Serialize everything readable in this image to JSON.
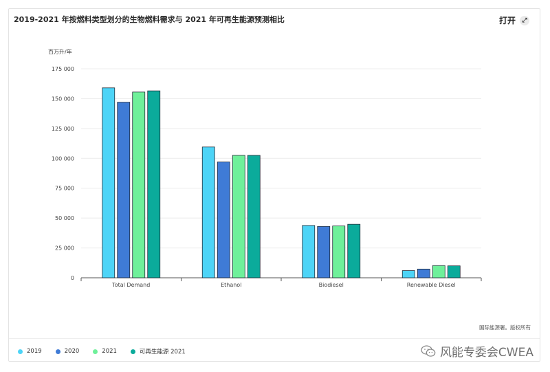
{
  "header": {
    "title": "2019-2021 年按燃料类型划分的生物燃料需求与 2021 年可再生能源预测相比",
    "open_label": "打开",
    "expand_icon": "expand-icon"
  },
  "unit_label": "百万升/年",
  "source": "国际能源署。版权所有",
  "watermark": "风能专委会CWEA",
  "colors": {
    "2019": "#4dd4f7",
    "2020": "#3f7bd6",
    "2021": "#6ff09a",
    "forecast": "#0bab9b"
  },
  "chart_data": {
    "type": "bar",
    "categories": [
      "Total Demand",
      "Ethanol",
      "Biodiesel",
      "Renewable Diesel"
    ],
    "series": [
      {
        "name": "2019",
        "values": [
          159000,
          109500,
          43800,
          6000
        ]
      },
      {
        "name": "2020",
        "values": [
          147000,
          97000,
          43000,
          7300
        ]
      },
      {
        "name": "2021",
        "values": [
          155500,
          102500,
          43400,
          10200
        ]
      },
      {
        "name": "可再生能源 2021",
        "values": [
          156500,
          102500,
          44800,
          10000
        ]
      }
    ],
    "ylim": [
      0,
      175000
    ],
    "yticks": [
      0,
      25000,
      50000,
      75000,
      100000,
      125000,
      150000,
      175000
    ],
    "ytick_labels": [
      "0",
      "25 000",
      "50 000",
      "75 000",
      "100 000",
      "125 000",
      "150 000",
      "175 000"
    ],
    "ylabel": "百万升/年",
    "grid": true,
    "legend_position": "bottom-left"
  }
}
